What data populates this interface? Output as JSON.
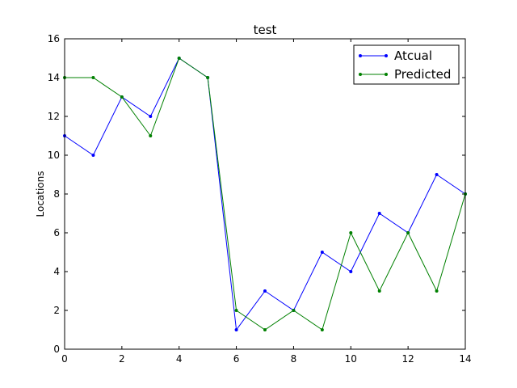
{
  "chart_data": {
    "type": "line",
    "title": "test",
    "xlabel": "",
    "ylabel": "Locations",
    "xlim": [
      0,
      14
    ],
    "ylim": [
      0,
      16
    ],
    "xticks": [
      0,
      2,
      4,
      6,
      8,
      10,
      12,
      14
    ],
    "yticks": [
      0,
      2,
      4,
      6,
      8,
      10,
      12,
      14,
      16
    ],
    "grid": false,
    "legend_position": "top-right",
    "x": [
      0,
      1,
      2,
      3,
      4,
      5,
      6,
      7,
      8,
      9,
      10,
      11,
      12,
      13,
      14
    ],
    "series": [
      {
        "name": "Atcual",
        "color": "#0000ff",
        "marker": "dot",
        "values": [
          11,
          10,
          13,
          12,
          15,
          14,
          1,
          3,
          2,
          5,
          4,
          7,
          6,
          9,
          8
        ]
      },
      {
        "name": "Predicted",
        "color": "#008000",
        "marker": "dot",
        "values": [
          14,
          14,
          13,
          11,
          15,
          14,
          2,
          1,
          2,
          1,
          6,
          3,
          6,
          3,
          8
        ]
      }
    ]
  }
}
